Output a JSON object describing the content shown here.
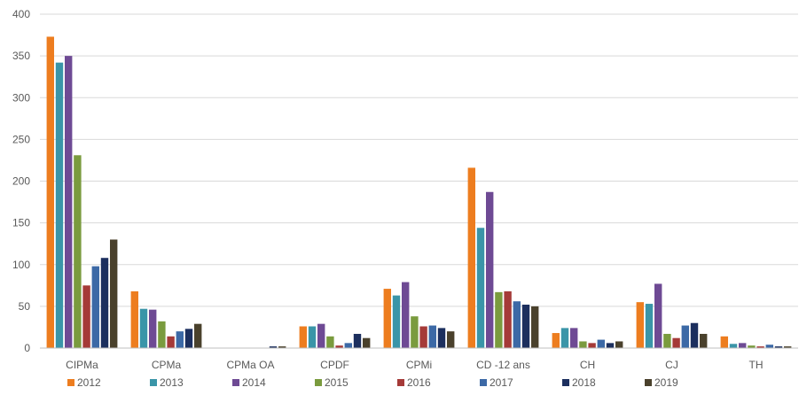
{
  "chart_data": {
    "type": "bar",
    "title": "",
    "xlabel": "",
    "ylabel": "",
    "ylim": [
      0,
      400
    ],
    "yticks": [
      0,
      50,
      100,
      150,
      200,
      250,
      300,
      350,
      400
    ],
    "grid": true,
    "legend_position": "bottom",
    "categories": [
      "CIPMa",
      "CPMa",
      "CPMa OA",
      "CPDF",
      "CPMi",
      "CD -12 ans",
      "CH",
      "CJ",
      "TH"
    ],
    "series": [
      {
        "name": "2012",
        "color": "#ED7D1F",
        "values": [
          373,
          68,
          0,
          26,
          71,
          216,
          18,
          55,
          14
        ]
      },
      {
        "name": "2013",
        "color": "#3A95A8",
        "values": [
          342,
          47,
          0,
          26,
          63,
          144,
          24,
          53,
          5
        ]
      },
      {
        "name": "2014",
        "color": "#6E4A94",
        "values": [
          350,
          46,
          0,
          29,
          79,
          187,
          24,
          77,
          6
        ]
      },
      {
        "name": "2015",
        "color": "#7A9B3E",
        "values": [
          231,
          32,
          0,
          14,
          38,
          67,
          8,
          17,
          3
        ]
      },
      {
        "name": "2016",
        "color": "#A53A38",
        "values": [
          75,
          14,
          0,
          3,
          26,
          68,
          6,
          12,
          2
        ]
      },
      {
        "name": "2017",
        "color": "#3C69A6",
        "values": [
          98,
          20,
          0,
          6,
          27,
          56,
          10,
          27,
          4
        ]
      },
      {
        "name": "2018",
        "color": "#1C2F5E",
        "values": [
          108,
          23,
          2,
          17,
          24,
          52,
          6,
          30,
          2
        ]
      },
      {
        "name": "2019",
        "color": "#4A412C",
        "values": [
          130,
          29,
          2,
          12,
          20,
          50,
          8,
          17,
          2
        ]
      }
    ]
  }
}
